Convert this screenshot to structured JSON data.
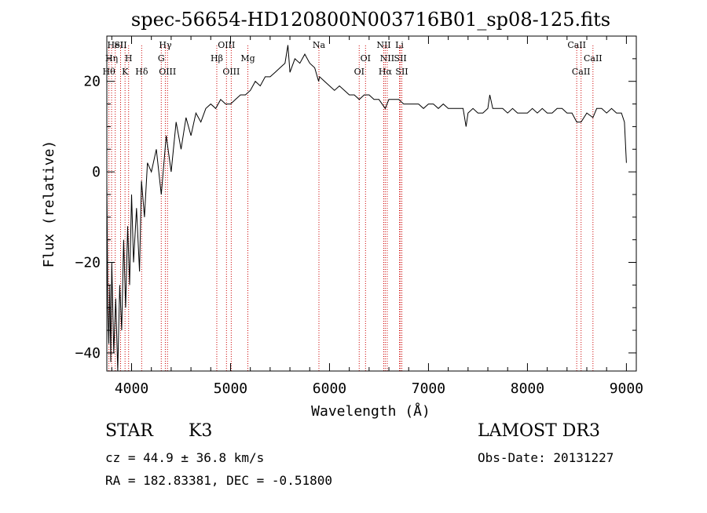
{
  "chart_data": {
    "type": "line",
    "title": "spec-56654-HD120800N003716B01_sp08-125.fits",
    "xlabel": "Wavelength (Å)",
    "ylabel": "Flux (relative)",
    "xlim": [
      3750,
      9100
    ],
    "ylim": [
      -44,
      30
    ],
    "xticks": [
      4000,
      5000,
      6000,
      7000,
      8000,
      9000
    ],
    "yticks": [
      -40,
      -20,
      0,
      20
    ],
    "grid": false,
    "line_color": "#000000",
    "marker_color": "#cc0000",
    "series": [
      {
        "x": [
          3750,
          3760,
          3770,
          3780,
          3790,
          3800,
          3820,
          3840,
          3860,
          3880,
          3900,
          3920,
          3940,
          3960,
          3980,
          4000,
          4020,
          4050,
          4080,
          4100,
          4130,
          4160,
          4200,
          4250,
          4300,
          4350,
          4400,
          4450,
          4500,
          4550,
          4600,
          4650,
          4700,
          4750,
          4800,
          4850,
          4900,
          4950,
          5000,
          5050,
          5100,
          5150,
          5200,
          5250,
          5300,
          5350,
          5400,
          5450,
          5500,
          5550,
          5580,
          5600,
          5650,
          5700,
          5750,
          5800,
          5850,
          5890,
          5900,
          5950,
          6000,
          6050,
          6100,
          6150,
          6200,
          6250,
          6300,
          6350,
          6400,
          6450,
          6500,
          6563,
          6600,
          6650,
          6700,
          6750,
          6800,
          6850,
          6900,
          6950,
          7000,
          7050,
          7100,
          7150,
          7200,
          7250,
          7300,
          7350,
          7380,
          7400,
          7450,
          7500,
          7550,
          7600,
          7620,
          7650,
          7700,
          7750,
          7800,
          7850,
          7900,
          7950,
          8000,
          8050,
          8100,
          8150,
          8200,
          8250,
          8300,
          8350,
          8400,
          8450,
          8498,
          8542,
          8600,
          8662,
          8700,
          8750,
          8800,
          8850,
          8900,
          8950,
          8980,
          9000
        ],
        "y": [
          -2,
          -30,
          -38,
          -25,
          -42,
          -20,
          -40,
          -28,
          -44,
          -25,
          -35,
          -15,
          -30,
          -12,
          -25,
          -5,
          -20,
          -8,
          -22,
          -2,
          -10,
          2,
          0,
          5,
          -5,
          8,
          0,
          11,
          5,
          12,
          8,
          13,
          11,
          14,
          15,
          14,
          16,
          15,
          15,
          16,
          17,
          17,
          18,
          20,
          19,
          21,
          21,
          22,
          23,
          24,
          28,
          22,
          25,
          24,
          26,
          24,
          23,
          20,
          21,
          20,
          19,
          18,
          19,
          18,
          17,
          17,
          16,
          17,
          17,
          16,
          16,
          14,
          16,
          16,
          16,
          15,
          15,
          15,
          15,
          14,
          15,
          15,
          14,
          15,
          14,
          14,
          14,
          14,
          10,
          13,
          14,
          13,
          13,
          14,
          17,
          14,
          14,
          14,
          13,
          14,
          13,
          13,
          13,
          14,
          13,
          14,
          13,
          13,
          14,
          14,
          13,
          13,
          11,
          11,
          13,
          12,
          14,
          14,
          13,
          14,
          13,
          13,
          11,
          2
        ]
      }
    ],
    "lines": [
      {
        "x": 3771,
        "label": "Hθ",
        "row": 3
      },
      {
        "x": 3798,
        "label": "Hη",
        "row": 2
      },
      {
        "x": 3835,
        "label": "HeI",
        "row": 1
      },
      {
        "x": 3889,
        "label": "SII",
        "row": 1
      },
      {
        "x": 3934,
        "label": "K",
        "row": 3
      },
      {
        "x": 3970,
        "label": "H",
        "row": 2
      },
      {
        "x": 4102,
        "label": "Hδ",
        "row": 3
      },
      {
        "x": 4300,
        "label": "G",
        "row": 2
      },
      {
        "x": 4341,
        "label": "Hγ",
        "row": 1
      },
      {
        "x": 4363,
        "label": "OIII",
        "row": 3
      },
      {
        "x": 4861,
        "label": "Hβ",
        "row": 2
      },
      {
        "x": 4959,
        "label": "OIII",
        "row": 1
      },
      {
        "x": 5007,
        "label": "OIII",
        "row": 3
      },
      {
        "x": 5175,
        "label": "Mg",
        "row": 2
      },
      {
        "x": 5893,
        "label": "Na",
        "row": 1
      },
      {
        "x": 6300,
        "label": "OI",
        "row": 3
      },
      {
        "x": 6364,
        "label": "OI",
        "row": 2
      },
      {
        "x": 6548,
        "label": "NII",
        "row": 1
      },
      {
        "x": 6563,
        "label": "Hα",
        "row": 3
      },
      {
        "x": 6583,
        "label": "NII",
        "row": 2
      },
      {
        "x": 6707,
        "label": "Li",
        "row": 1
      },
      {
        "x": 6716,
        "label": "SII",
        "row": 2
      },
      {
        "x": 6731,
        "label": "SII",
        "row": 3
      },
      {
        "x": 8498,
        "label": "CaII",
        "row": 1
      },
      {
        "x": 8542,
        "label": "CaII",
        "row": 3
      },
      {
        "x": 8662,
        "label": "CaII",
        "row": 2
      }
    ]
  },
  "info": {
    "obj_class": "STAR",
    "obj_subclass": "K3",
    "survey": "LAMOST DR3",
    "cz_line": "cz = 44.9 ± 36.8 km/s",
    "obsdate_line": "Obs-Date: 20131227",
    "radec_line": "RA = 182.83381, DEC =  -0.51800"
  }
}
